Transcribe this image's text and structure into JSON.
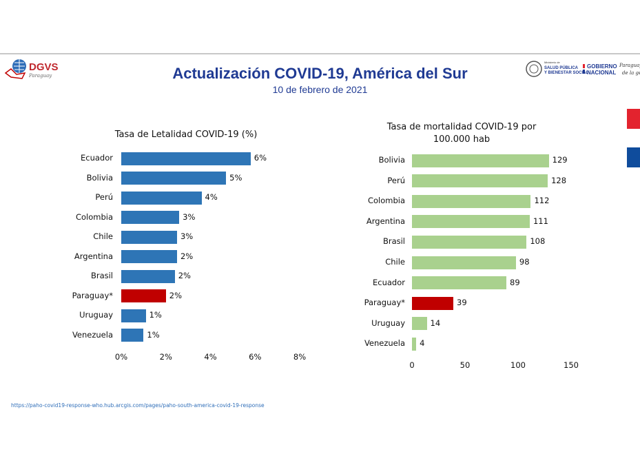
{
  "header": {
    "title": "Actualización COVID-19, América del Sur",
    "subtitle": "10 de febrero de 2021",
    "logo_left": "DGVS Paraguay",
    "logo_right": [
      "Ministerio de Salud Pública y Bienestar Social",
      "Gobierno Nacional",
      "Paraguay de la gente"
    ]
  },
  "colors": {
    "bar_left": "#2e75b6",
    "bar_right": "#a9d18e",
    "highlight": "#c00000",
    "title": "#1f3a93",
    "flag_red": "#e3232e",
    "flag_blue": "#0f4c9c"
  },
  "chart_data": [
    {
      "type": "bar",
      "orientation": "horizontal",
      "title": "Tasa de Letalidad COVID-19 (%)",
      "categories": [
        "Ecuador",
        "Bolivia",
        "Perú",
        "Colombia",
        "Chile",
        "Argentina",
        "Brasil",
        "Paraguay*",
        "Uruguay",
        "Venezuela"
      ],
      "values": [
        5.8,
        4.7,
        3.6,
        2.6,
        2.5,
        2.5,
        2.4,
        2.0,
        1.1,
        1.0
      ],
      "data_labels": [
        "6%",
        "5%",
        "4%",
        "3%",
        "3%",
        "2%",
        "2%",
        "2%",
        "1%",
        "1%"
      ],
      "highlight": "Paraguay*",
      "xlim": [
        0,
        8
      ],
      "xticks": [
        "0%",
        "2%",
        "4%",
        "6%",
        "8%"
      ],
      "grid": false
    },
    {
      "type": "bar",
      "orientation": "horizontal",
      "title": "Tasa de mortalidad COVID-19 por 100.000 hab",
      "title_lines": [
        "Tasa de mortalidad COVID-19 por",
        "100.000 hab"
      ],
      "categories": [
        "Bolivia",
        "Perú",
        "Colombia",
        "Argentina",
        "Brasil",
        "Chile",
        "Ecuador",
        "Paraguay*",
        "Uruguay",
        "Venezuela"
      ],
      "values": [
        129,
        128,
        112,
        111,
        108,
        98,
        89,
        39,
        14,
        4
      ],
      "data_labels": [
        "129",
        "128",
        "112",
        "111",
        "108",
        "98",
        "89",
        "39",
        "14",
        "4"
      ],
      "highlight": "Paraguay*",
      "xlim": [
        0,
        150
      ],
      "xticks": [
        "0",
        "50",
        "100",
        "150"
      ],
      "grid": false
    }
  ],
  "footer": {
    "source_url": "https://paho-covid19-response-who.hub.arcgis.com/pages/paho-south-america-covid-19-response"
  }
}
